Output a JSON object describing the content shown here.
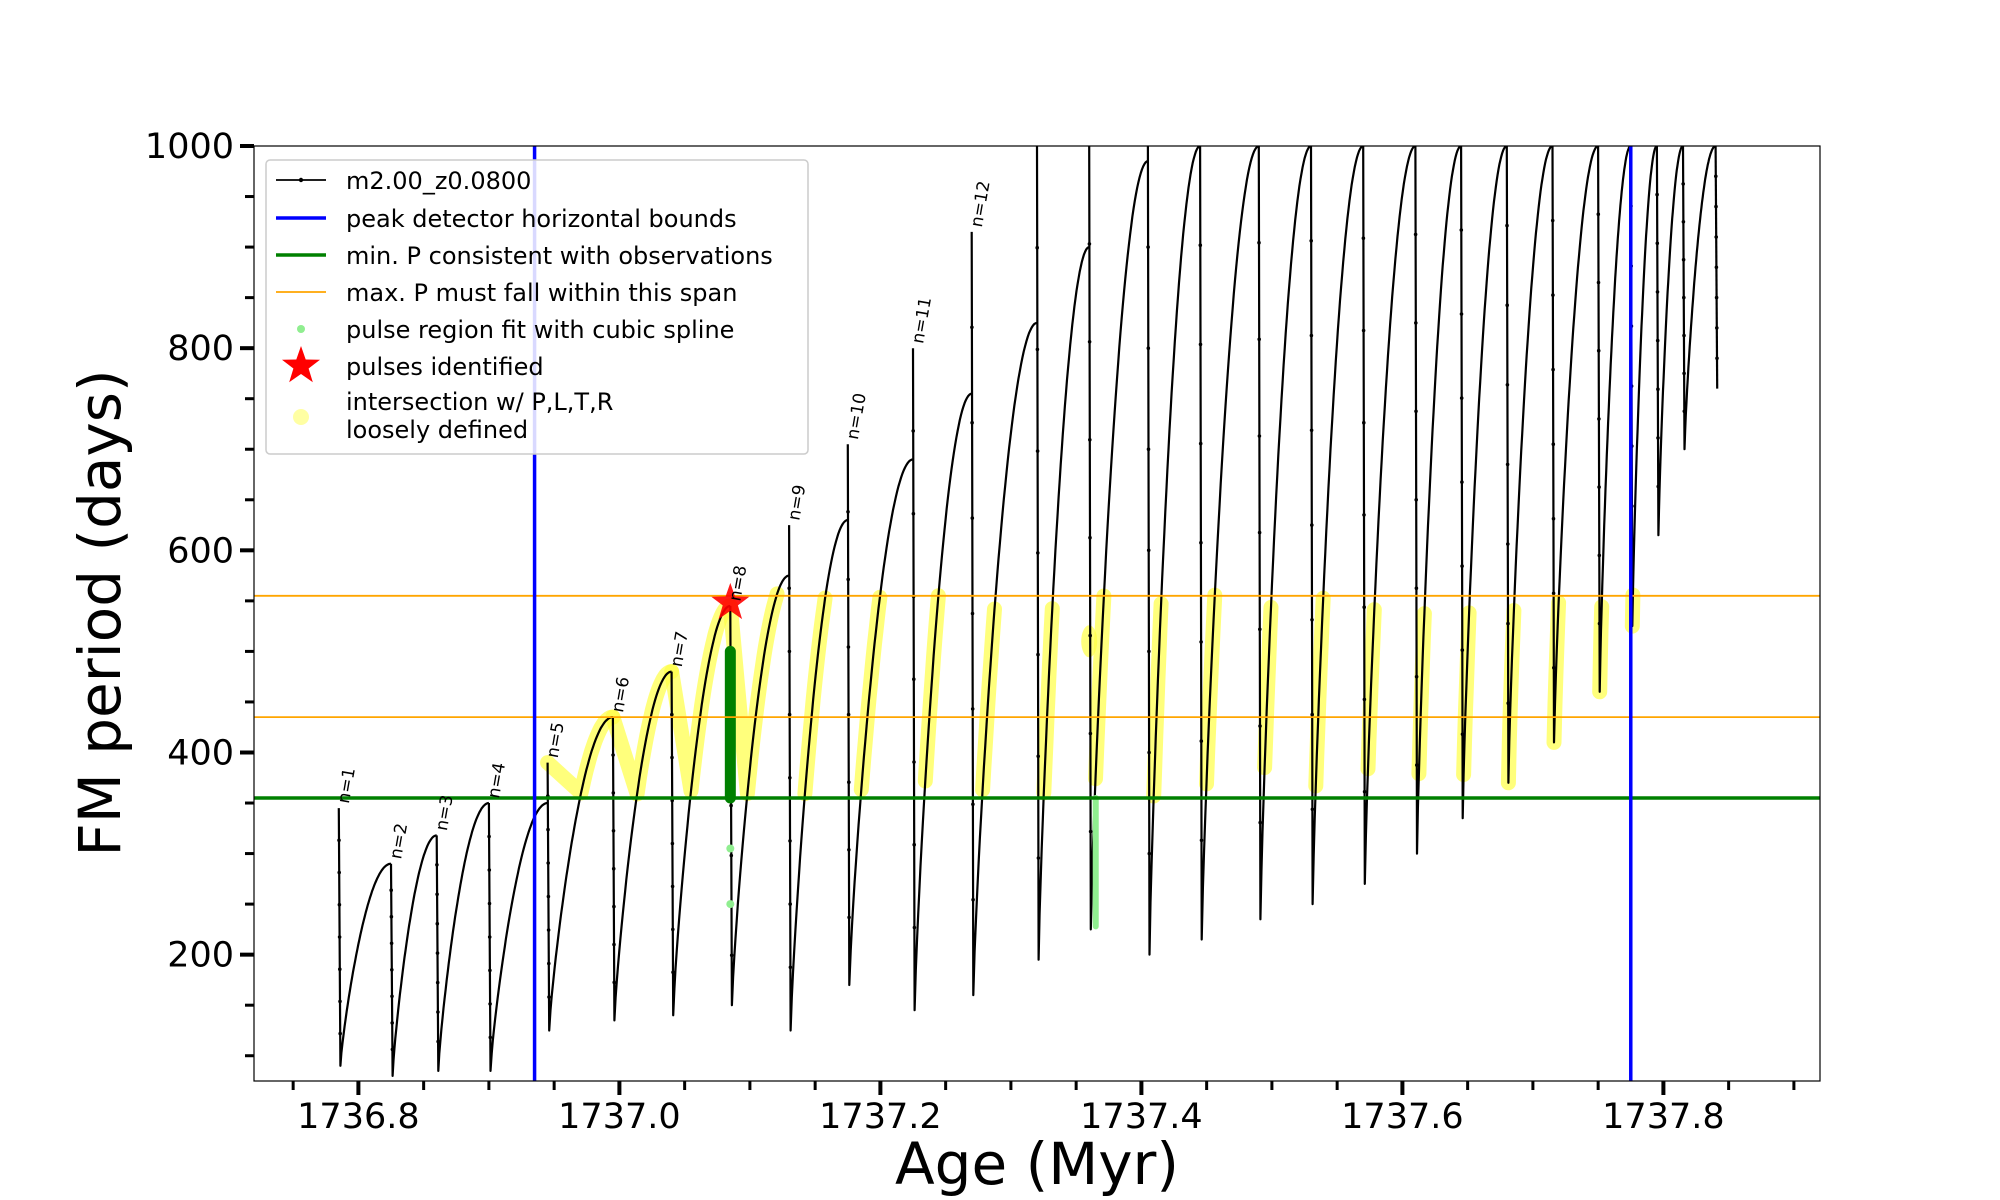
{
  "chart_data": {
    "type": "line",
    "xlabel": "Age (Myr)",
    "ylabel": "FM period (days)",
    "xlim": [
      1736.72,
      1737.92
    ],
    "ylim": [
      75,
      1000
    ],
    "xticks": [
      1736.8,
      1737.0,
      1737.2,
      1737.4,
      1737.6,
      1737.8
    ],
    "xtick_labels": [
      "1736.8",
      "1737.0",
      "1737.2",
      "1737.4",
      "1737.6",
      "1737.8"
    ],
    "yticks": [
      200,
      400,
      600,
      800,
      1000
    ],
    "ytick_labels": [
      "200",
      "400",
      "600",
      "800",
      "1000"
    ],
    "grid": false,
    "legend_position": "top-left",
    "legend": [
      {
        "label": "m2.00_z0.0800",
        "kind": "line-marker",
        "color": "#000000"
      },
      {
        "label": "peak detector horizontal bounds",
        "kind": "line",
        "color": "#0000ff"
      },
      {
        "label": "min. P consistent with observations",
        "kind": "line",
        "color": "#008000"
      },
      {
        "label": "max. P must fall within this span",
        "kind": "thin-line",
        "color": "#ffa500"
      },
      {
        "label": "pulse region fit with cubic spline",
        "kind": "dot",
        "color": "#90ee90"
      },
      {
        "label": "pulses identified",
        "kind": "star",
        "color": "#ff0000"
      },
      {
        "label": "intersection w/ P,L,T,R\nloosely defined",
        "kind": "big-dot",
        "color": "#ffff66"
      }
    ],
    "vertical_lines": [
      {
        "x": 1736.935,
        "color": "#0000ff",
        "name": "peak detector horizontal bounds"
      },
      {
        "x": 1737.775,
        "color": "#0000ff",
        "name": "peak detector horizontal bounds"
      }
    ],
    "horizontal_lines": [
      {
        "y": 355,
        "color": "#008000",
        "name": "min. P consistent with observations"
      },
      {
        "y": 435,
        "color": "#ffa500",
        "name": "max. P must fall within this span"
      },
      {
        "y": 555,
        "color": "#ffa500",
        "name": "max. P must fall within this span"
      }
    ],
    "series_name": "m2.00_z0.0800",
    "pulses": [
      {
        "start": 1736.785,
        "top": 345,
        "bottom": 90,
        "peak": 290,
        "label": "n=1"
      },
      {
        "start": 1736.825,
        "top": 290,
        "bottom": 80,
        "peak": 318,
        "label": "n=2"
      },
      {
        "start": 1736.86,
        "top": 318,
        "bottom": 85,
        "peak": 350,
        "label": "n=3"
      },
      {
        "start": 1736.9,
        "top": 350,
        "bottom": 85,
        "peak": 350,
        "label": "n=4"
      },
      {
        "start": 1736.945,
        "top": 390,
        "bottom": 125,
        "peak": 435,
        "label": "n=5"
      },
      {
        "start": 1736.995,
        "top": 435,
        "bottom": 135,
        "peak": 480,
        "label": "n=6"
      },
      {
        "start": 1737.04,
        "top": 480,
        "bottom": 140,
        "peak": 545,
        "label": "n=7"
      },
      {
        "start": 1737.085,
        "top": 545,
        "bottom": 150,
        "peak": 575,
        "label": "n=8"
      },
      {
        "start": 1737.13,
        "top": 625,
        "bottom": 125,
        "peak": 630,
        "label": "n=9"
      },
      {
        "start": 1737.175,
        "top": 705,
        "bottom": 170,
        "peak": 690,
        "label": "n=10"
      },
      {
        "start": 1737.225,
        "top": 800,
        "bottom": 145,
        "peak": 755,
        "label": "n=11"
      },
      {
        "start": 1737.27,
        "top": 915,
        "bottom": 160,
        "peak": 825,
        "label": "n=12"
      },
      {
        "start": 1737.32,
        "top": 1000,
        "bottom": 195,
        "peak": 900,
        "label": ""
      },
      {
        "start": 1737.36,
        "top": 1000,
        "bottom": 225,
        "peak": 985,
        "label": ""
      },
      {
        "start": 1737.405,
        "top": 1000,
        "bottom": 200,
        "peak": 1000,
        "label": ""
      },
      {
        "start": 1737.445,
        "top": 1000,
        "bottom": 215,
        "peak": 1000,
        "label": ""
      },
      {
        "start": 1737.49,
        "top": 1000,
        "bottom": 235,
        "peak": 1000,
        "label": ""
      },
      {
        "start": 1737.53,
        "top": 1000,
        "bottom": 250,
        "peak": 1000,
        "label": ""
      },
      {
        "start": 1737.57,
        "top": 1000,
        "bottom": 270,
        "peak": 1000,
        "label": ""
      },
      {
        "start": 1737.61,
        "top": 1000,
        "bottom": 300,
        "peak": 1000,
        "label": ""
      },
      {
        "start": 1737.645,
        "top": 1000,
        "bottom": 335,
        "peak": 1000,
        "label": ""
      },
      {
        "start": 1737.68,
        "top": 1000,
        "bottom": 370,
        "peak": 1000,
        "label": ""
      },
      {
        "start": 1737.715,
        "top": 1000,
        "bottom": 410,
        "peak": 1000,
        "label": ""
      },
      {
        "start": 1737.75,
        "top": 1000,
        "bottom": 460,
        "peak": 1000,
        "label": ""
      },
      {
        "start": 1737.775,
        "top": 1000,
        "bottom": 525,
        "peak": 1000,
        "label": ""
      },
      {
        "start": 1737.795,
        "top": 1000,
        "bottom": 615,
        "peak": 1000,
        "label": ""
      },
      {
        "start": 1737.815,
        "top": 1000,
        "bottom": 700,
        "peak": 1000,
        "label": ""
      },
      {
        "start": 1737.84,
        "top": 1000,
        "bottom": 760,
        "peak": null,
        "label": ""
      }
    ],
    "identified_pulse": {
      "x": 1737.085,
      "y": 548
    }
  }
}
